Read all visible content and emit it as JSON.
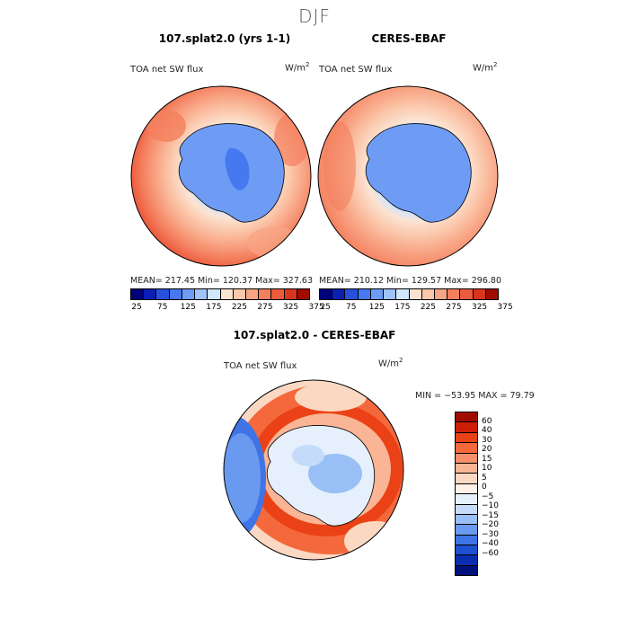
{
  "suptitle": "DJF",
  "panels": [
    {
      "title": "107.splat2.0 (yrs 1-1)",
      "variable": "TOA net SW flux",
      "units_base": "W/m",
      "units_exp": "2",
      "stats": "MEAN= 217.45   Min= 120.37   Max= 327.63"
    },
    {
      "title": "CERES-EBAF",
      "variable": "TOA net SW flux",
      "units_base": "W/m",
      "units_exp": "2",
      "stats": "MEAN= 210.12   Min= 129.57   Max= 296.80"
    },
    {
      "title": "107.splat2.0 - CERES-EBAF",
      "variable": "TOA net SW flux",
      "units_base": "W/m",
      "units_exp": "2",
      "stats": "MIN = −53.95 MAX =  79.79"
    }
  ],
  "colors": {
    "abs_scale": [
      "#00007a",
      "#0a1eb4",
      "#2850dc",
      "#4678f0",
      "#6e9cf5",
      "#a0c3fa",
      "#d2e6fc",
      "#fbe3d2",
      "#fbc8ac",
      "#f8a585",
      "#f47f5e",
      "#ec5a3c",
      "#d9341e",
      "#a00c00"
    ],
    "diff_scale": [
      "#a00c00",
      "#cd1e06",
      "#ea4216",
      "#f4693c",
      "#f79068",
      "#f9b595",
      "#fbd8c2",
      "#fdf0e6",
      "#e6f0fc",
      "#c4dcfa",
      "#98bff6",
      "#6a9af0",
      "#3e74e6",
      "#1e50d2",
      "#0a2eaf",
      "#00127a"
    ]
  },
  "chart_data": [
    {
      "type": "heatmap",
      "title": "107.splat2.0 (yrs 1-1)",
      "subtitle": "TOA net SW flux",
      "units": "W/m2",
      "projection": "south polar stereographic",
      "stats": {
        "mean": 217.45,
        "min": 120.37,
        "max": 327.63
      },
      "colorbar_ticks": [
        "25",
        "75",
        "125",
        "175",
        "225",
        "275",
        "325",
        "375"
      ]
    },
    {
      "type": "heatmap",
      "title": "CERES-EBAF",
      "subtitle": "TOA net SW flux",
      "units": "W/m2",
      "projection": "south polar stereographic",
      "stats": {
        "mean": 210.12,
        "min": 129.57,
        "max": 296.8
      },
      "colorbar_ticks": [
        "25",
        "75",
        "125",
        "175",
        "225",
        "275",
        "325",
        "375"
      ]
    },
    {
      "type": "heatmap",
      "title": "107.splat2.0 - CERES-EBAF",
      "subtitle": "TOA net SW flux",
      "units": "W/m2",
      "projection": "south polar stereographic",
      "stats": {
        "min": -53.95,
        "max": 79.79
      },
      "colorbar_ticks": [
        "60",
        "40",
        "30",
        "20",
        "15",
        "10",
        "5",
        "0",
        "−5",
        "−10",
        "−15",
        "−20",
        "−30",
        "−40",
        "−60"
      ]
    }
  ]
}
